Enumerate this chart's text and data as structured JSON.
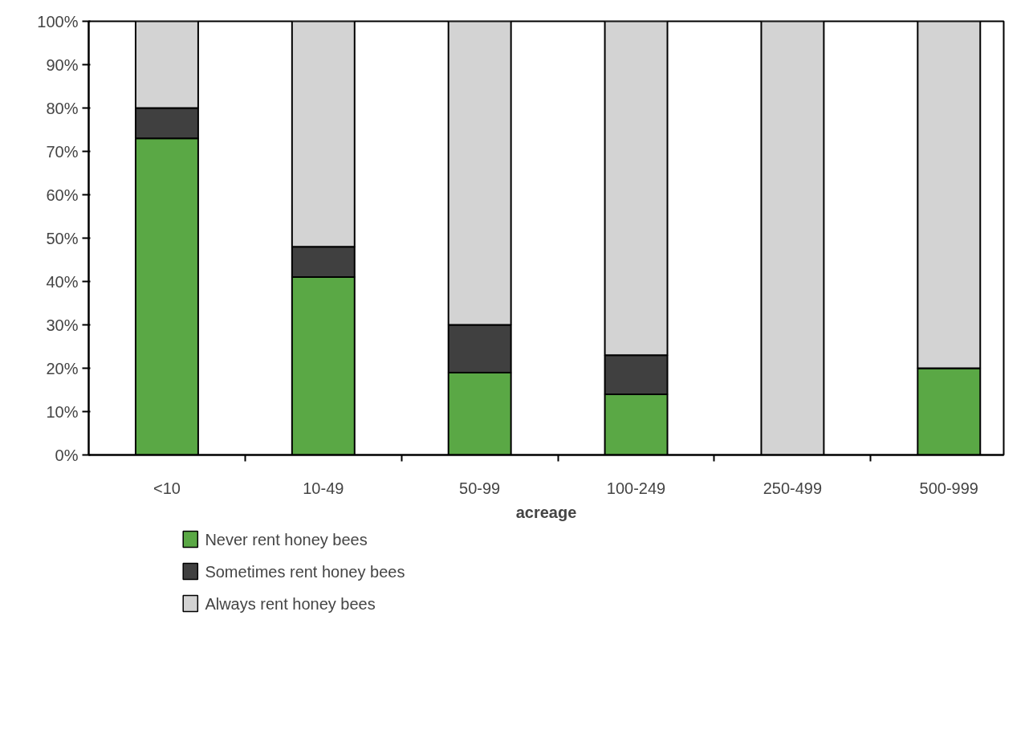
{
  "chart_data": {
    "type": "bar",
    "stacked": true,
    "xlabel": "acreage",
    "categories": [
      "<10",
      "10-49",
      "50-99",
      "100-249",
      "250-499",
      "500-999"
    ],
    "series": [
      {
        "name": "Never rent honey bees",
        "color": "#5aa845",
        "values": [
          73,
          41,
          19,
          14,
          0,
          20
        ]
      },
      {
        "name": "Sometimes rent honey bees",
        "color": "#404040",
        "values": [
          7,
          7,
          11,
          9,
          0,
          0
        ]
      },
      {
        "name": "Always rent honey bees",
        "color": "#d3d3d3",
        "values": [
          20,
          52,
          70,
          77,
          100,
          80
        ]
      }
    ],
    "ylim": [
      0,
      100
    ],
    "yticks": [
      {
        "value": 0,
        "label": "0%"
      },
      {
        "value": 10,
        "label": "10%"
      },
      {
        "value": 20,
        "label": "20%"
      },
      {
        "value": 30,
        "label": "30%"
      },
      {
        "value": 40,
        "label": "40%"
      },
      {
        "value": 50,
        "label": "50%"
      },
      {
        "value": 60,
        "label": "60%"
      },
      {
        "value": 70,
        "label": "70%"
      },
      {
        "value": 80,
        "label": "80%"
      },
      {
        "value": 90,
        "label": "90%"
      },
      {
        "value": 100,
        "label": "100%"
      }
    ],
    "grid": false,
    "legend": "bottom left"
  }
}
